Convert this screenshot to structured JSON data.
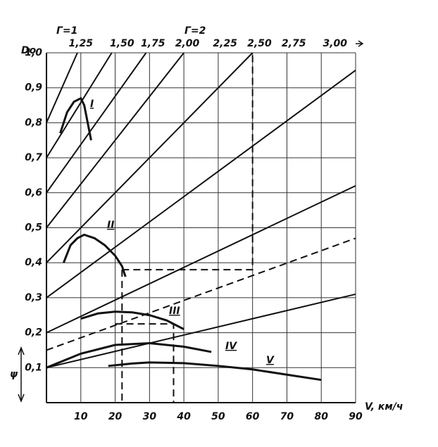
{
  "chart_data": {
    "type": "line",
    "xlabel": "V, км/ч",
    "ylabel": "ψ",
    "top_axis_label": "Do",
    "annotations": [
      "Г=1",
      "Г=2"
    ],
    "xlim": [
      0,
      90
    ],
    "ylim": [
      0,
      1.0
    ],
    "xticks": [
      10,
      20,
      30,
      40,
      50,
      60,
      70,
      80,
      90
    ],
    "yticks": [
      {
        "value": 0.1,
        "label": "0,1"
      },
      {
        "value": 0.2,
        "label": "0,2"
      },
      {
        "value": 0.3,
        "label": "0,3"
      },
      {
        "value": 0.4,
        "label": "0,4"
      },
      {
        "value": 0.5,
        "label": "0,5"
      },
      {
        "value": 0.6,
        "label": "0,6"
      },
      {
        "value": 0.7,
        "label": "0,7"
      },
      {
        "value": 0.8,
        "label": "0,8"
      },
      {
        "value": 0.9,
        "label": "0,9"
      },
      {
        "value": 1.0,
        "label": "1,0"
      }
    ],
    "x2ticks": [
      {
        "value": 10,
        "label": "1,25"
      },
      {
        "value": 22,
        "label": "1,50"
      },
      {
        "value": 31,
        "label": "1,75"
      },
      {
        "value": 41,
        "label": "2,00"
      },
      {
        "value": 52,
        "label": "2,25"
      },
      {
        "value": 62,
        "label": "2,50"
      },
      {
        "value": 72,
        "label": "2,75"
      },
      {
        "value": 84,
        "label": "3,00"
      }
    ],
    "grid": true,
    "color": "#111111",
    "series": [
      {
        "x": [
          0,
          9
        ],
        "values": [
          0.8,
          1.0
        ]
      },
      {
        "x": [
          0,
          19
        ],
        "values": [
          0.7,
          1.0
        ]
      },
      {
        "x": [
          0,
          29
        ],
        "values": [
          0.6,
          1.0
        ]
      },
      {
        "x": [
          0,
          40
        ],
        "values": [
          0.5,
          1.0
        ]
      },
      {
        "x": [
          0,
          60
        ],
        "values": [
          0.4,
          1.0
        ]
      },
      {
        "x": [
          0,
          90
        ],
        "values": [
          0.3,
          0.95
        ]
      },
      {
        "x": [
          0,
          90
        ],
        "values": [
          0.2,
          0.62
        ]
      },
      {
        "x": [
          0,
          90
        ],
        "values": [
          0.1,
          0.31
        ]
      },
      {
        "name": "I",
        "x": [
          4,
          6,
          8,
          10,
          11,
          12,
          13
        ],
        "values": [
          0.77,
          0.83,
          0.86,
          0.87,
          0.85,
          0.8,
          0.75
        ]
      },
      {
        "name": "II",
        "x": [
          5,
          7,
          9,
          11,
          14,
          17,
          20,
          22,
          23
        ],
        "values": [
          0.4,
          0.45,
          0.47,
          0.48,
          0.47,
          0.45,
          0.42,
          0.39,
          0.36
        ]
      },
      {
        "name": "III",
        "x": [
          10,
          15,
          20,
          25,
          30,
          35,
          40
        ],
        "values": [
          0.24,
          0.255,
          0.26,
          0.258,
          0.25,
          0.235,
          0.21
        ]
      },
      {
        "name": "IV",
        "x": [
          0,
          10,
          20,
          30,
          40,
          48
        ],
        "values": [
          0.1,
          0.14,
          0.165,
          0.17,
          0.16,
          0.145
        ]
      },
      {
        "name": "V",
        "x": [
          18,
          25,
          30,
          40,
          50,
          60,
          70,
          80
        ],
        "values": [
          0.105,
          0.112,
          0.115,
          0.113,
          0.105,
          0.095,
          0.08,
          0.065
        ]
      },
      {
        "x": [
          0,
          90
        ],
        "values": [
          0.15,
          0.47
        ],
        "dash": true
      },
      {
        "x": [
          22,
          60,
          60
        ],
        "values": [
          0.38,
          0.38,
          1.0
        ],
        "dash": true
      },
      {
        "x": [
          22,
          22
        ],
        "values": [
          0.38,
          0.0
        ],
        "dash": true
      },
      {
        "x": [
          20,
          37,
          37
        ],
        "values": [
          0.225,
          0.225,
          0.0
        ],
        "dash": true
      }
    ]
  }
}
